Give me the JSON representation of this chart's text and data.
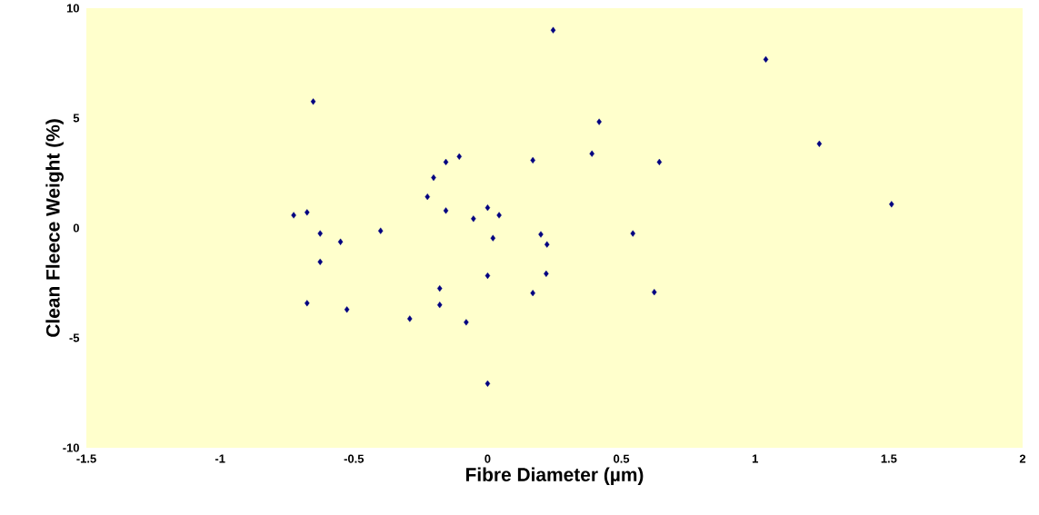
{
  "chart_data": {
    "type": "scatter",
    "xlabel": "Fibre Diameter (µm)",
    "ylabel": "Clean Fleece Weight (%)",
    "xlim": [
      -1.5,
      2
    ],
    "ylim": [
      -10,
      10
    ],
    "xticks": [
      -1.5,
      -1,
      -0.5,
      0,
      0.5,
      1,
      1.5,
      2
    ],
    "yticks": [
      -10,
      -5,
      0,
      5,
      10
    ],
    "grid": false,
    "marker": "diamond",
    "series": [
      {
        "color": "#000080",
        "x": [
          0.245,
          1.04,
          -0.652,
          0.417,
          1.24,
          0.39,
          -0.106,
          0.169,
          0.642,
          -0.156,
          -0.202,
          -0.225,
          1.51,
          0,
          -0.156,
          -0.675,
          -0.725,
          0.043,
          -0.053,
          -0.4,
          -0.626,
          0.543,
          0.199,
          0.02,
          -0.55,
          0.222,
          -0.626,
          0,
          0.219,
          -0.179,
          0.169,
          0.623,
          -0.675,
          -0.179,
          -0.526,
          -0.291,
          -0.08,
          0
        ],
        "values": [
          9.0,
          7.67,
          5.75,
          4.83,
          3.83,
          3.38,
          3.25,
          3.08,
          3.0,
          3.0,
          2.29,
          1.42,
          1.08,
          0.92,
          0.79,
          0.71,
          0.58,
          0.58,
          0.42,
          -0.13,
          -0.25,
          -0.25,
          -0.29,
          -0.46,
          -0.63,
          -0.75,
          -1.54,
          -2.17,
          -2.08,
          -2.75,
          -2.96,
          -2.92,
          -3.42,
          -3.5,
          -3.71,
          -4.13,
          -4.29,
          -7.08
        ]
      }
    ]
  }
}
